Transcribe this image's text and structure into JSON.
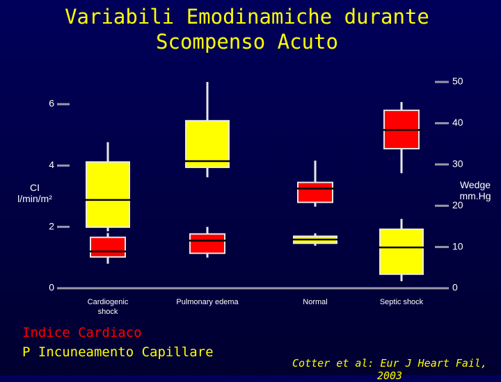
{
  "chart_data": {
    "type": "box",
    "title": [
      "Variabili Emodinamiche durante",
      "Scompenso Acuto"
    ],
    "categories": [
      "Cardiogenic shock",
      "Pulmonary edema",
      "Normal",
      "Septic shock"
    ],
    "ylabel": "CI l/min/m²",
    "y2label": "Wedge mm.Hg",
    "ylim": [
      0,
      6
    ],
    "yticks": [
      0,
      2,
      4,
      6
    ],
    "y2lim": [
      0,
      50
    ],
    "y2ticks": [
      0,
      10,
      20,
      30,
      40,
      50
    ],
    "series": [
      {
        "name": "Indice Cardiaco",
        "color": "#ff0000",
        "axis": "y",
        "boxes": [
          {
            "whislo": 0.8,
            "q1": 1.02,
            "med": 1.2,
            "q3": 1.66,
            "whishi": 1.8
          },
          {
            "whislo": 1.0,
            "q1": 1.14,
            "med": 1.55,
            "q3": 1.77,
            "whishi": 2.0
          },
          {
            "whislo": 2.66,
            "q1": 2.8,
            "med": 3.25,
            "q3": 3.45,
            "whishi": 4.16
          },
          {
            "whislo": 3.75,
            "q1": 4.55,
            "med": 5.16,
            "q3": 5.8,
            "whishi": 6.07
          }
        ]
      },
      {
        "name": "P Incuneamento Capillare",
        "color": "#ffff00",
        "axis": "y2",
        "boxes": [
          {
            "whislo": 13.8,
            "q1": 14.8,
            "med": 21.4,
            "q3": 30.6,
            "whishi": 35.4
          },
          {
            "whislo": 26.9,
            "q1": 29.3,
            "med": 30.8,
            "q3": 40.6,
            "whishi": 50
          },
          {
            "whislo": 10.3,
            "q1": 10.9,
            "med": 11.8,
            "q3": 12.6,
            "whishi": 13.3
          },
          {
            "whislo": 1.7,
            "q1": 3.4,
            "med": 9.9,
            "q3": 14.3,
            "whishi": 16.8
          }
        ]
      }
    ],
    "annotation": "Cotter et al: Eur J Heart Fail, 2003"
  }
}
